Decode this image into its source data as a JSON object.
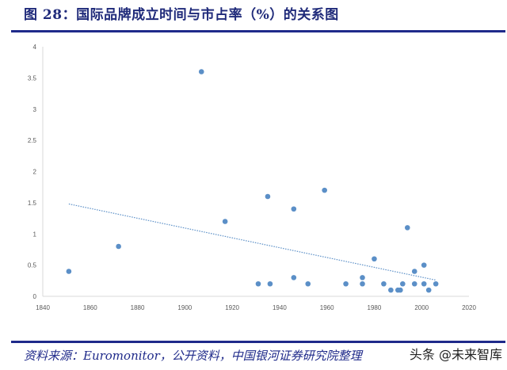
{
  "title": "图 28：国际品牌成立时间与市占率（%）的关系图",
  "source": "资料来源：Euromonitor，公开资料，中国银河证券研究院整理",
  "watermark": "头条 @未来智库",
  "colors": {
    "point": "#5b8fc7",
    "trend": "#5b8fc7",
    "rule": "#1f2a8a"
  },
  "chart_data": {
    "type": "scatter",
    "title": "",
    "xlabel": "",
    "ylabel": "",
    "xlim": [
      1840,
      2020
    ],
    "ylim": [
      0,
      4
    ],
    "xticks": [
      1840,
      1860,
      1880,
      1900,
      1920,
      1940,
      1960,
      1980,
      2000,
      2020
    ],
    "yticks": [
      0,
      0.5,
      1,
      1.5,
      2,
      2.5,
      3,
      3.5,
      4
    ],
    "grid": false,
    "legend": "none",
    "points": [
      [
        1851,
        0.4
      ],
      [
        1872,
        0.8
      ],
      [
        1907,
        3.6
      ],
      [
        1917,
        1.2
      ],
      [
        1931,
        0.2
      ],
      [
        1935,
        1.6
      ],
      [
        1936,
        0.2
      ],
      [
        1946,
        1.4
      ],
      [
        1946,
        0.3
      ],
      [
        1952,
        0.2
      ],
      [
        1959,
        1.7
      ],
      [
        1968,
        0.2
      ],
      [
        1975,
        0.3
      ],
      [
        1975,
        0.2
      ],
      [
        1980,
        0.6
      ],
      [
        1984,
        0.2
      ],
      [
        1987,
        0.1
      ],
      [
        1990,
        0.1
      ],
      [
        1991,
        0.1
      ],
      [
        1992,
        0.2
      ],
      [
        1994,
        1.1
      ],
      [
        1997,
        0.4
      ],
      [
        1997,
        0.2
      ],
      [
        2001,
        0.5
      ],
      [
        2001,
        0.2
      ],
      [
        2003,
        0.1
      ],
      [
        2006,
        0.2
      ]
    ],
    "trendline": {
      "type": "linear",
      "from": [
        1851,
        1.48
      ],
      "to": [
        2006,
        0.26
      ],
      "style": "dotted"
    }
  }
}
